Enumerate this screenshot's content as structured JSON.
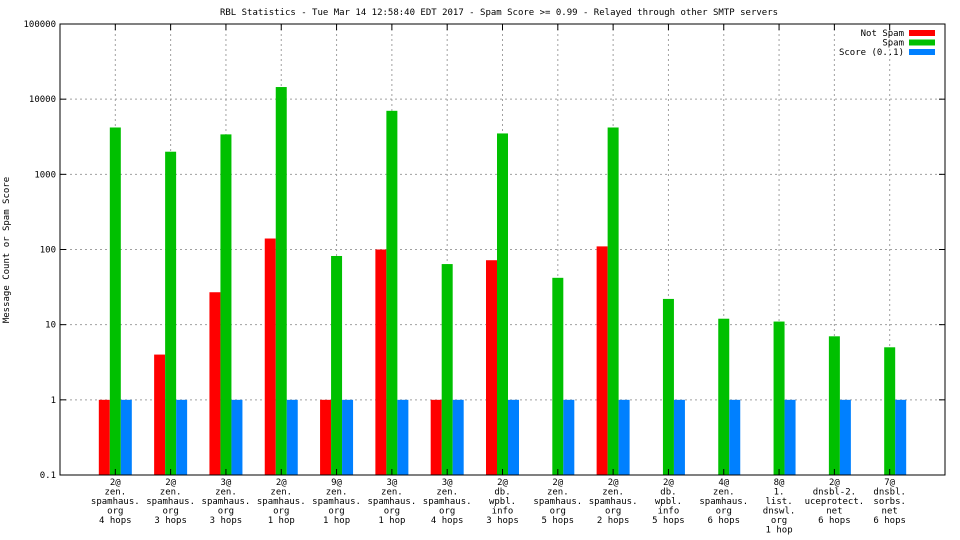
{
  "chart_data": {
    "type": "bar",
    "title": "RBL Statistics - Tue Mar 14 12:58:40 EDT 2017 - Spam Score >= 0.99 - Relayed through other SMTP servers",
    "xlabel": "",
    "ylabel": "Message Count or Spam Score",
    "yscale": "log",
    "ylim": [
      0.1,
      100000
    ],
    "yticks": [
      "0.1",
      "1",
      "10",
      "100",
      "1000",
      "10000",
      "100000"
    ],
    "grid": true,
    "legend_position": "top-right",
    "categories": [
      [
        "2@",
        "zen.",
        "spamhaus.",
        "org",
        "4 hops"
      ],
      [
        "2@",
        "zen.",
        "spamhaus.",
        "org",
        "3 hops"
      ],
      [
        "3@",
        "zen.",
        "spamhaus.",
        "org",
        "3 hops"
      ],
      [
        "2@",
        "zen.",
        "spamhaus.",
        "org",
        "1 hop"
      ],
      [
        "9@",
        "zen.",
        "spamhaus.",
        "org",
        "1 hop"
      ],
      [
        "3@",
        "zen.",
        "spamhaus.",
        "org",
        "1 hop"
      ],
      [
        "3@",
        "zen.",
        "spamhaus.",
        "org",
        "4 hops"
      ],
      [
        "2@",
        "db.",
        "wpbl.",
        "info",
        "3 hops"
      ],
      [
        "2@",
        "zen.",
        "spamhaus.",
        "org",
        "5 hops"
      ],
      [
        "2@",
        "zen.",
        "spamhaus.",
        "org",
        "2 hops"
      ],
      [
        "2@",
        "db.",
        "wpbl.",
        "info",
        "5 hops"
      ],
      [
        "4@",
        "zen.",
        "spamhaus.",
        "org",
        "6 hops"
      ],
      [
        "8@",
        "1.",
        "list.",
        "dnswl.",
        "org",
        "1 hop"
      ],
      [
        "2@",
        "dnsbl-2.",
        "uceprotect.",
        "net",
        "6 hops"
      ],
      [
        "7@",
        "dnsbl.",
        "sorbs.",
        "net",
        "6 hops"
      ]
    ],
    "series": [
      {
        "name": "Not Spam",
        "color": "#ff0000",
        "values": [
          1,
          4,
          27,
          140,
          1,
          100,
          1,
          72,
          null,
          110,
          null,
          null,
          null,
          null,
          null
        ]
      },
      {
        "name": "Spam",
        "color": "#00c000",
        "values": [
          4200,
          2000,
          3400,
          14500,
          82,
          7000,
          64,
          3500,
          42,
          4200,
          22,
          12,
          11,
          7,
          5
        ]
      },
      {
        "name": "Score (0..1)",
        "color": "#0080ff",
        "values": [
          1,
          1,
          1,
          1,
          1,
          1,
          1,
          1,
          1,
          1,
          1,
          1,
          1,
          1,
          1
        ]
      }
    ]
  }
}
